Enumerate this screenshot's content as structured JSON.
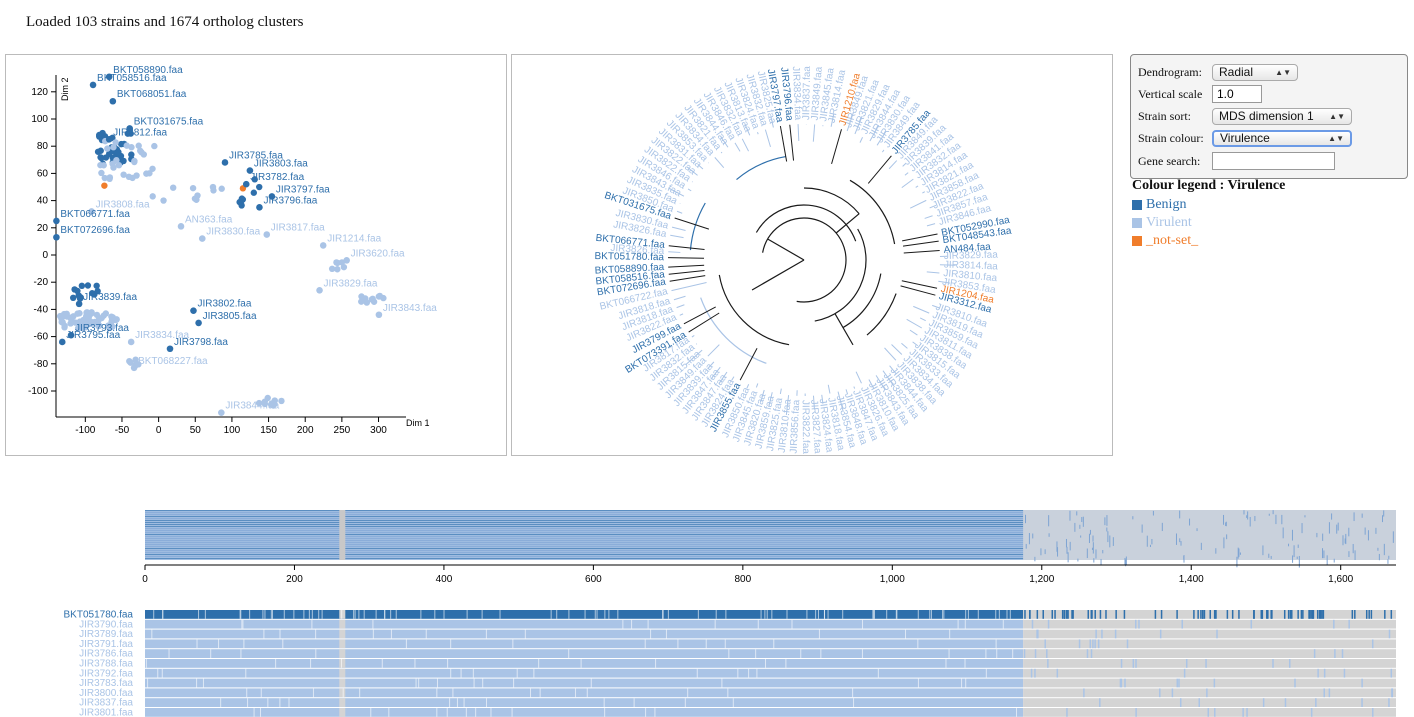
{
  "status": "Loaded 103 strains and 1674 ortholog clusters",
  "colors": {
    "benign": "#2e6fab",
    "virulent": "#aac4e6",
    "notset": "#f07d2b",
    "missing": "#d4d4d4",
    "dark": "#1a1a1a"
  },
  "mds": {
    "x_label": "Dim 1",
    "y_label": "Dim 2",
    "x_ticks": [
      "-100",
      "-50",
      "0",
      "50",
      "100",
      "150",
      "200",
      "250",
      "300"
    ],
    "y_ticks": [
      "120",
      "100",
      "80",
      "60",
      "40",
      "20",
      "0",
      "-20",
      "-40",
      "-60",
      "-80",
      "-100"
    ],
    "labels": [
      {
        "text": "BKT058890.faa",
        "x": -62,
        "y": 134,
        "c": "benign"
      },
      {
        "text": "BKT058516.faa",
        "x": -84,
        "y": 128,
        "c": "benign"
      },
      {
        "text": "BKT068051.faa",
        "x": -57,
        "y": 116,
        "c": "benign"
      },
      {
        "text": "BKT031675.faa",
        "x": -34,
        "y": 96,
        "c": "benign"
      },
      {
        "text": "JIR3812.faa",
        "x": -62,
        "y": 88,
        "c": "benign"
      },
      {
        "text": "JIR3785.faa",
        "x": 96,
        "y": 71,
        "c": "benign"
      },
      {
        "text": "JIR3803.faa",
        "x": 130,
        "y": 65,
        "c": "benign"
      },
      {
        "text": "JIR3782.faa",
        "x": 125,
        "y": 55,
        "c": "benign"
      },
      {
        "text": "JIR3797.faa",
        "x": 160,
        "y": 46,
        "c": "benign"
      },
      {
        "text": "JIR3796.faa",
        "x": 143,
        "y": 38,
        "c": "benign"
      },
      {
        "text": "JIR3808.faa",
        "x": -86,
        "y": 35,
        "c": "virulent"
      },
      {
        "text": "BKT066771.faa",
        "x": -134,
        "y": 28,
        "c": "benign"
      },
      {
        "text": "AN363.faa",
        "x": 36,
        "y": 24,
        "c": "virulent"
      },
      {
        "text": "JIR3817.faa",
        "x": 153,
        "y": 18,
        "c": "virulent"
      },
      {
        "text": "JIR3830.faa",
        "x": 65,
        "y": 15,
        "c": "virulent"
      },
      {
        "text": "BKT072696.faa",
        "x": -134,
        "y": 16,
        "c": "benign"
      },
      {
        "text": "JIR1214.faa",
        "x": 230,
        "y": 10,
        "c": "virulent"
      },
      {
        "text": "JIR3620.faa",
        "x": 262,
        "y": -1,
        "c": "virulent"
      },
      {
        "text": "JIR3829.faa",
        "x": 225,
        "y": -23,
        "c": "virulent"
      },
      {
        "text": "JIR3839.faa",
        "x": -103,
        "y": -33,
        "c": "benign"
      },
      {
        "text": "JIR3802.faa",
        "x": 53,
        "y": -38,
        "c": "benign"
      },
      {
        "text": "JIR3805.faa",
        "x": 60,
        "y": -47,
        "c": "benign"
      },
      {
        "text": "JIR3843.faa",
        "x": 306,
        "y": -41,
        "c": "virulent"
      },
      {
        "text": "JIR3793.faa",
        "x": -114,
        "y": -56,
        "c": "benign"
      },
      {
        "text": "JIR3795.faa",
        "x": -126,
        "y": -61,
        "c": "benign"
      },
      {
        "text": "JIR3834.faa",
        "x": -32,
        "y": -61,
        "c": "virulent"
      },
      {
        "text": "JIR3798.faa",
        "x": 21,
        "y": -66,
        "c": "benign"
      },
      {
        "text": "BKT068227.faa",
        "x": -28,
        "y": -80,
        "c": "virulent"
      },
      {
        "text": "JIR3844.faa",
        "x": 91,
        "y": -113,
        "c": "virulent"
      }
    ]
  },
  "controls": {
    "dendrogram_label": "Dendrogram:",
    "dendrogram_value": "Radial",
    "vscale_label": "Vertical scale",
    "vscale_value": "1.0",
    "sort_label": "Strain sort:",
    "sort_value": "MDS dimension 1",
    "colour_label": "Strain colour:",
    "colour_value": "Virulence",
    "search_label": "Gene search:",
    "search_value": ""
  },
  "legend": {
    "title": "Colour legend : Virulence",
    "items": [
      {
        "label": "Benign",
        "color": "#2e6fab"
      },
      {
        "label": "Virulent",
        "color": "#aac4e6"
      },
      {
        "label": "_not-set_",
        "color": "#f07d2b"
      }
    ]
  },
  "tree_labels": [
    {
      "text": "JIR3797.faa",
      "a": -100,
      "c": "benign"
    },
    {
      "text": "JIR3796.faa",
      "a": -96,
      "c": "benign"
    },
    {
      "text": "JIR1210.faa",
      "a": -74,
      "c": "notset"
    },
    {
      "text": "JIR3785.faa",
      "a": -50,
      "c": "benign"
    },
    {
      "text": "BKT052990.faa",
      "a": -11,
      "c": "benign"
    },
    {
      "text": "BKT048543.faa",
      "a": -8,
      "c": "benign"
    },
    {
      "text": "AN484.faa",
      "a": -4,
      "c": "benign"
    },
    {
      "text": "JIR1204.faa",
      "a": 12,
      "c": "notset"
    },
    {
      "text": "JIR3312.faa",
      "a": 15,
      "c": "benign"
    },
    {
      "text": "BKT031675.faa",
      "a": -162,
      "c": "benign"
    },
    {
      "text": "BKT066771.faa",
      "a": -174,
      "c": "benign"
    },
    {
      "text": "BKT051780.faa",
      "a": -179,
      "c": "benign"
    },
    {
      "text": "BKT058890.faa",
      "a": 177,
      "c": "benign"
    },
    {
      "text": "BKT058516.faa",
      "a": 174,
      "c": "benign"
    },
    {
      "text": "BKT072696.faa",
      "a": 171,
      "c": "benign"
    },
    {
      "text": "BKT066722.faa",
      "a": 167,
      "c": "virulent"
    },
    {
      "text": "JIR3799.faa",
      "a": 152,
      "c": "benign"
    },
    {
      "text": "BKT073391.faa",
      "a": 148,
      "c": "benign"
    },
    {
      "text": "JIR3855.faa",
      "a": 118,
      "c": "benign"
    }
  ],
  "overview": {
    "x_ticks": [
      "0",
      "200",
      "400",
      "600",
      "800",
      "1,000",
      "1,200",
      "1,400",
      "1,600"
    ],
    "max": 1674
  },
  "strains": [
    {
      "name": "BKT051780.faa",
      "c": "benign"
    },
    {
      "name": "JIR3790.faa",
      "c": "virulent"
    },
    {
      "name": "JIR3789.faa",
      "c": "virulent"
    },
    {
      "name": "JIR3791.faa",
      "c": "virulent"
    },
    {
      "name": "JIR3786.faa",
      "c": "virulent"
    },
    {
      "name": "JIR3788.faa",
      "c": "virulent"
    },
    {
      "name": "JIR3792.faa",
      "c": "virulent"
    },
    {
      "name": "JIR3783.faa",
      "c": "virulent"
    },
    {
      "name": "JIR3800.faa",
      "c": "virulent"
    },
    {
      "name": "JIR3837.faa",
      "c": "virulent"
    },
    {
      "name": "JIR3801.faa",
      "c": "virulent"
    }
  ]
}
